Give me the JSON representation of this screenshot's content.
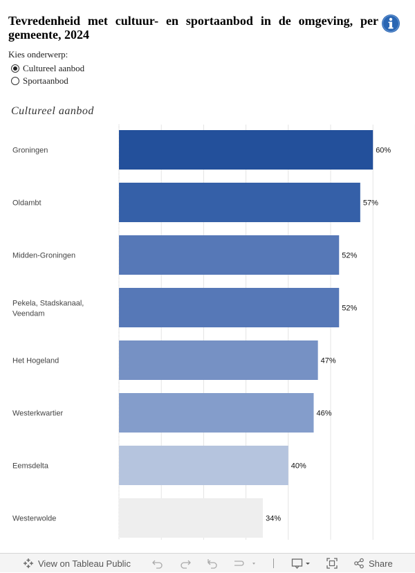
{
  "header": {
    "title": "Tevredenheid met cultuur- en sportaanbod in de omgeving, per gemeente, 2024",
    "info_icon": "info-icon"
  },
  "filter": {
    "label": "Kies onderwerp:",
    "options": [
      {
        "label": "Cultureel aanbod",
        "selected": true
      },
      {
        "label": "Sportaanbod",
        "selected": false
      }
    ]
  },
  "chart_data": {
    "type": "bar",
    "orientation": "horizontal",
    "title": "Cultureel aanbod",
    "categories": [
      "Groningen",
      "Oldambt",
      "Midden-Groningen",
      "Pekela, Stadskanaal, Veendam",
      "Het Hogeland",
      "Westerkwartier",
      "Eemsdelta",
      "Westerwolde"
    ],
    "values": [
      60,
      57,
      52,
      52,
      47,
      46,
      40,
      34
    ],
    "value_labels": [
      "60%",
      "57%",
      "52%",
      "52%",
      "47%",
      "46%",
      "40%",
      "34%"
    ],
    "bar_colors": [
      "#23509b",
      "#3560a8",
      "#5678b7",
      "#5678b7",
      "#7691c4",
      "#849dcb",
      "#b5c4de",
      "#eeeeee"
    ],
    "xlim": [
      0,
      70
    ],
    "grid": true,
    "xlabel": "",
    "ylabel": ""
  },
  "toolbar": {
    "view_label": "View on Tableau Public",
    "share_label": "Share"
  }
}
